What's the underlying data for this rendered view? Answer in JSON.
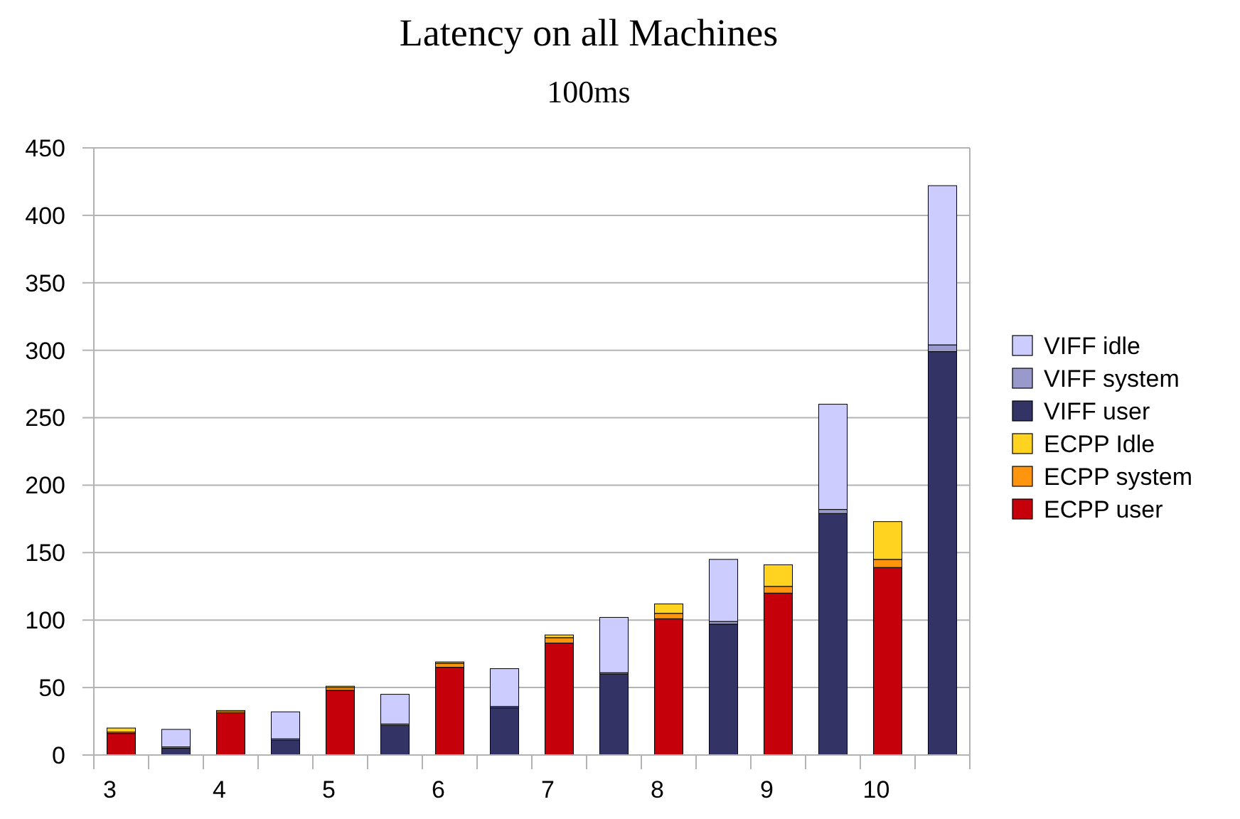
{
  "chart_data": {
    "type": "bar",
    "title": "Latency on all Machines",
    "subtitle": "100ms",
    "categories": [
      "3",
      null,
      "4",
      null,
      "5",
      null,
      "6",
      null,
      "7",
      null,
      "8",
      null,
      "9",
      null,
      "10",
      null
    ],
    "stacked": true,
    "series": [
      {
        "name": "ECPP user",
        "color": "#c5000b",
        "values": [
          16,
          null,
          31,
          null,
          48,
          null,
          65,
          null,
          83,
          null,
          101,
          null,
          120,
          null,
          139,
          null
        ]
      },
      {
        "name": "ECPP system",
        "color": "#ff950e",
        "values": [
          1,
          null,
          1,
          null,
          2,
          null,
          3,
          null,
          4,
          null,
          4,
          null,
          5,
          null,
          6,
          null
        ]
      },
      {
        "name": "ECPP Idle",
        "color": "#ffd320",
        "values": [
          3,
          null,
          1,
          null,
          1,
          null,
          1,
          null,
          2,
          null,
          7,
          null,
          16,
          null,
          28,
          null
        ]
      },
      {
        "name": "VIFF user",
        "color": "#333366",
        "values": [
          null,
          5,
          null,
          11,
          null,
          22,
          null,
          35,
          null,
          60,
          null,
          97,
          null,
          179,
          null,
          299
        ]
      },
      {
        "name": "VIFF system",
        "color": "#9999cc",
        "values": [
          null,
          1,
          null,
          1,
          null,
          1,
          null,
          1,
          null,
          1,
          null,
          2,
          null,
          3,
          null,
          5
        ]
      },
      {
        "name": "VIFF idle",
        "color": "#ccccff",
        "values": [
          null,
          13,
          null,
          20,
          null,
          22,
          null,
          28,
          null,
          41,
          null,
          46,
          null,
          78,
          null,
          118
        ]
      }
    ],
    "ylim": [
      0,
      450
    ],
    "yticks": [
      0,
      50,
      100,
      150,
      200,
      250,
      300,
      350,
      400,
      450
    ],
    "grid": "y",
    "legend": "right"
  }
}
